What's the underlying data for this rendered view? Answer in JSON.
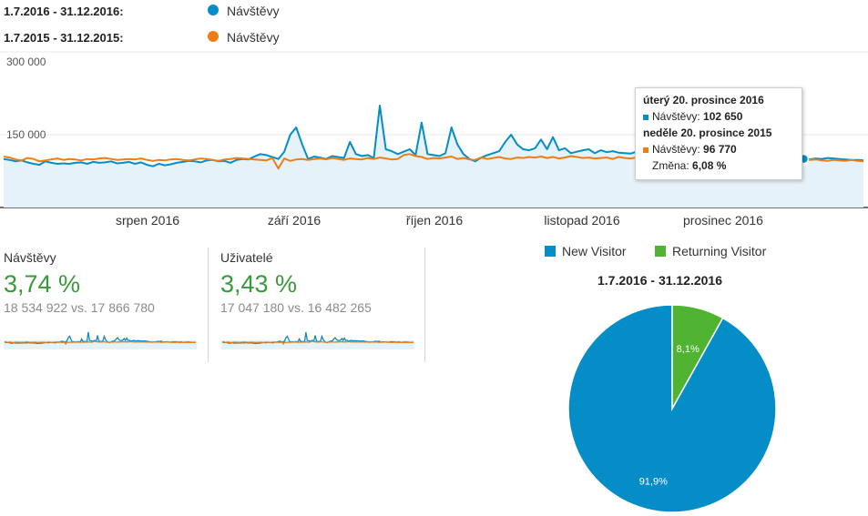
{
  "legend": [
    {
      "range": "1.7.2016 - 31.12.2016:",
      "series": "Návštěvy",
      "color": "#058dc7"
    },
    {
      "range": "1.7.2015 - 31.12.2015:",
      "series": "Návštěvy",
      "color": "#ed7e17"
    }
  ],
  "chart_data": {
    "type": "line",
    "y_ticks": [
      "300 000",
      "150 000"
    ],
    "ylim": [
      0,
      300000
    ],
    "x_labels": [
      "srpen 2016",
      "září 2016",
      "říjen 2016",
      "listopad 2016",
      "prosinec 2016"
    ],
    "series": [
      {
        "name": "Návštěvy",
        "period": "1.7.2016 - 31.12.2016",
        "color": "#058dc7",
        "values": [
          100000,
          98000,
          95000,
          97000,
          93000,
          90000,
          88000,
          95000,
          92000,
          90000,
          91000,
          90000,
          92000,
          93000,
          90000,
          94000,
          92000,
          93000,
          95000,
          91000,
          92000,
          94000,
          90000,
          93000,
          88000,
          85000,
          90000,
          87000,
          89000,
          92000,
          94000,
          96000,
          95000,
          93000,
          97000,
          98000,
          95000,
          96000,
          92000,
          98000,
          100000,
          99000,
          105000,
          110000,
          108000,
          104000,
          100000,
          115000,
          150000,
          165000,
          130000,
          100000,
          105000,
          103000,
          100000,
          106000,
          104000,
          102000,
          135000,
          110000,
          106000,
          108000,
          102000,
          210000,
          120000,
          116000,
          110000,
          115000,
          120000,
          108000,
          175000,
          110000,
          108000,
          106000,
          112000,
          165000,
          130000,
          110000,
          100000,
          95000,
          103000,
          108000,
          112000,
          116000,
          135000,
          150000,
          130000,
          120000,
          118000,
          122000,
          140000,
          120000,
          145000,
          118000,
          122000,
          112000,
          115000,
          118000,
          120000,
          112000,
          118000,
          114000,
          116000,
          113000,
          112000,
          111000,
          115000,
          110000,
          108000,
          104000,
          103000,
          100000,
          102000,
          104000,
          105000,
          108000,
          110000,
          105000,
          112000,
          100000,
          102000,
          104000,
          103000,
          102000,
          101000,
          100000,
          102000,
          103000,
          104000,
          103000,
          102000,
          101000,
          100000,
          102650,
          100000,
          99000,
          101000,
          100000,
          102000,
          101000,
          100000,
          99000,
          98000,
          98000,
          97000
        ]
      },
      {
        "name": "Návštěvy",
        "period": "1.7.2015 - 31.12.2015",
        "color": "#ed7e17",
        "values": [
          105000,
          103000,
          99000,
          97000,
          102000,
          100000,
          95000,
          97000,
          99000,
          101000,
          98000,
          100000,
          99000,
          97000,
          100000,
          99000,
          101000,
          102000,
          100000,
          98000,
          99000,
          100000,
          99000,
          101000,
          98000,
          96000,
          98000,
          97000,
          99000,
          100000,
          98000,
          97000,
          99000,
          101000,
          100000,
          98000,
          96000,
          99000,
          100000,
          102000,
          101000,
          100000,
          99000,
          98000,
          97000,
          102000,
          80000,
          101000,
          96000,
          99000,
          100000,
          98000,
          100000,
          101000,
          99000,
          102000,
          100000,
          98000,
          101000,
          100000,
          99000,
          102000,
          100000,
          103000,
          101000,
          99000,
          100000,
          108000,
          110000,
          106000,
          104000,
          100000,
          102000,
          101000,
          103000,
          105000,
          100000,
          102000,
          99000,
          98000,
          103000,
          100000,
          102000,
          104000,
          101000,
          100000,
          103000,
          102000,
          104000,
          103000,
          105000,
          102000,
          104000,
          101000,
          103000,
          106000,
          104000,
          102000,
          103000,
          101000,
          102000,
          103000,
          100000,
          104000,
          102000,
          101000,
          103000,
          100000,
          102000,
          101000,
          100000,
          99000,
          101000,
          103000,
          100000,
          102000,
          101000,
          100000,
          98000,
          99000,
          101000,
          100000,
          102000,
          101000,
          99000,
          100000,
          98000,
          99000,
          97000,
          99000,
          100000,
          98000,
          97000,
          99000,
          96770,
          98000,
          99000,
          97000,
          96000,
          98000,
          97000,
          96000,
          98000,
          96000,
          95000
        ]
      }
    ]
  },
  "tooltip": {
    "date_current": "úterý 20. prosince 2016",
    "label_current": "Návštěvy:",
    "value_current": "102 650",
    "date_previous": "neděle 20. prosince 2015",
    "label_previous": "Návštěvy:",
    "value_previous": "96 770",
    "change_label": "Změna:",
    "change_value": "6,08 %"
  },
  "metrics": [
    {
      "name": "Návštěvy",
      "value": "3,74 %",
      "compare": "18 534 922 vs. 17 866 780"
    },
    {
      "name": "Uživatelé",
      "value": "3,43 %",
      "compare": "17 047 180 vs. 16 482 265"
    }
  ],
  "pie": {
    "title": "1.7.2016 - 31.12.2016",
    "legend": [
      {
        "label": "New Visitor",
        "color": "#058dc7"
      },
      {
        "label": "Returning Visitor",
        "color": "#50b432"
      }
    ],
    "chart_data": {
      "type": "pie",
      "slices": [
        {
          "label": "New Visitor",
          "value": 91.9,
          "text": "91,9%",
          "color": "#058dc7"
        },
        {
          "label": "Returning Visitor",
          "value": 8.1,
          "text": "8,1%",
          "color": "#50b432"
        }
      ]
    }
  }
}
